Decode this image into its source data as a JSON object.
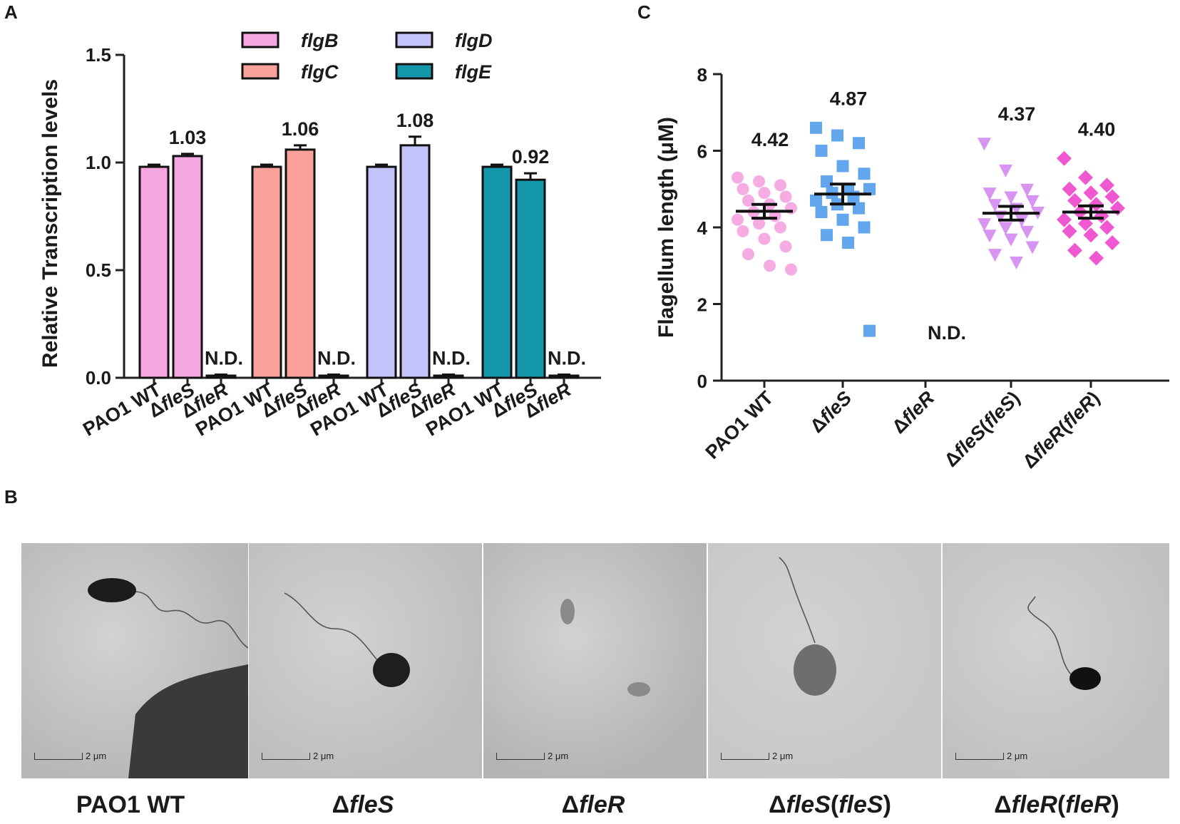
{
  "panels": {
    "a": "A",
    "b": "B",
    "c": "C"
  },
  "chart_data": [
    {
      "id": "A",
      "type": "bar",
      "ylabel": "Relative Transcription levels",
      "ylim": [
        0,
        1.5
      ],
      "yticks": [
        "0.0",
        "0.5",
        "1.0",
        "1.5"
      ],
      "categories": [
        "PAO1 WT",
        "ΔfleS",
        "ΔfleR"
      ],
      "legend_placement": "top-center",
      "series": [
        {
          "name": "flgB",
          "color": "#f4a6e0",
          "values": [
            0.98,
            1.03,
            0.01
          ],
          "errors": [
            0.01,
            0.01,
            0.005
          ],
          "labels": [
            "",
            "1.03",
            "N.D."
          ]
        },
        {
          "name": "flgC",
          "color": "#f9a19a",
          "values": [
            0.98,
            1.06,
            0.01
          ],
          "errors": [
            0.01,
            0.02,
            0.005
          ],
          "labels": [
            "",
            "1.06",
            "N.D."
          ]
        },
        {
          "name": "flgD",
          "color": "#c4c2fb",
          "values": [
            0.98,
            1.08,
            0.01
          ],
          "errors": [
            0.01,
            0.04,
            0.005
          ],
          "labels": [
            "",
            "1.08",
            "N.D."
          ]
        },
        {
          "name": "flgE",
          "color": "#1597aa",
          "values": [
            0.98,
            0.92,
            0.01
          ],
          "errors": [
            0.01,
            0.03,
            0.005
          ],
          "labels": [
            "",
            "0.92",
            "N.D."
          ]
        }
      ]
    },
    {
      "id": "C",
      "type": "scatter",
      "ylabel": "Flagellum length (μM)",
      "ylim": [
        0,
        8
      ],
      "yticks": [
        "0",
        "2",
        "4",
        "6",
        "8"
      ],
      "categories": [
        "PAO1 WT",
        "ΔfleS",
        "ΔfleR",
        "ΔfleS(fleS)",
        "ΔfleR(fleR)"
      ],
      "groups": [
        {
          "name": "PAO1 WT",
          "marker": "circle",
          "color": "#f5a3df",
          "mean": 4.42,
          "sem": 0.18,
          "label": "4.42",
          "points": [
            5.3,
            5.2,
            5.1,
            5.0,
            4.9,
            4.8,
            4.7,
            4.6,
            4.5,
            4.4,
            4.3,
            4.2,
            4.1,
            4.0,
            3.9,
            3.7,
            3.5,
            3.3,
            3.0,
            2.9
          ]
        },
        {
          "name": "ΔfleS",
          "marker": "square",
          "color": "#5aa2ec",
          "mean": 4.87,
          "sem": 0.26,
          "label": "4.87",
          "points": [
            6.6,
            6.4,
            6.2,
            6.0,
            5.6,
            5.4,
            5.2,
            5.0,
            5.0,
            4.9,
            4.8,
            4.7,
            4.6,
            4.5,
            4.4,
            4.2,
            4.0,
            3.8,
            3.6,
            1.3
          ]
        },
        {
          "name": "ΔfleR",
          "marker": "none",
          "color": "#000000",
          "mean": null,
          "sem": null,
          "label": "N.D.",
          "points": []
        },
        {
          "name": "ΔfleS(fleS)",
          "marker": "triangle-down",
          "color": "#d68ef0",
          "mean": 4.37,
          "sem": 0.18,
          "label": "4.37",
          "points": [
            6.2,
            5.5,
            5.0,
            4.9,
            4.8,
            4.7,
            4.6,
            4.5,
            4.4,
            4.3,
            4.2,
            4.1,
            4.0,
            3.9,
            3.8,
            3.7,
            3.5,
            3.3,
            3.1
          ]
        },
        {
          "name": "ΔfleR(fleR)",
          "marker": "diamond",
          "color": "#ee4fce",
          "mean": 4.4,
          "sem": 0.16,
          "label": "4.40",
          "points": [
            5.8,
            5.3,
            5.1,
            5.0,
            4.9,
            4.8,
            4.7,
            4.6,
            4.5,
            4.4,
            4.3,
            4.2,
            4.1,
            4.0,
            3.9,
            3.8,
            3.6,
            3.4,
            3.2
          ]
        }
      ]
    }
  ],
  "em_panels": [
    {
      "label": "PAO1 WT",
      "scale": "2 μm"
    },
    {
      "label": "ΔfleS",
      "scale": "2 μm"
    },
    {
      "label": "ΔfleR",
      "scale": "2 μm"
    },
    {
      "label": "ΔfleS(fleS)",
      "scale": "2 μm"
    },
    {
      "label": "ΔfleR(fleR)",
      "scale": "2 μm"
    }
  ]
}
